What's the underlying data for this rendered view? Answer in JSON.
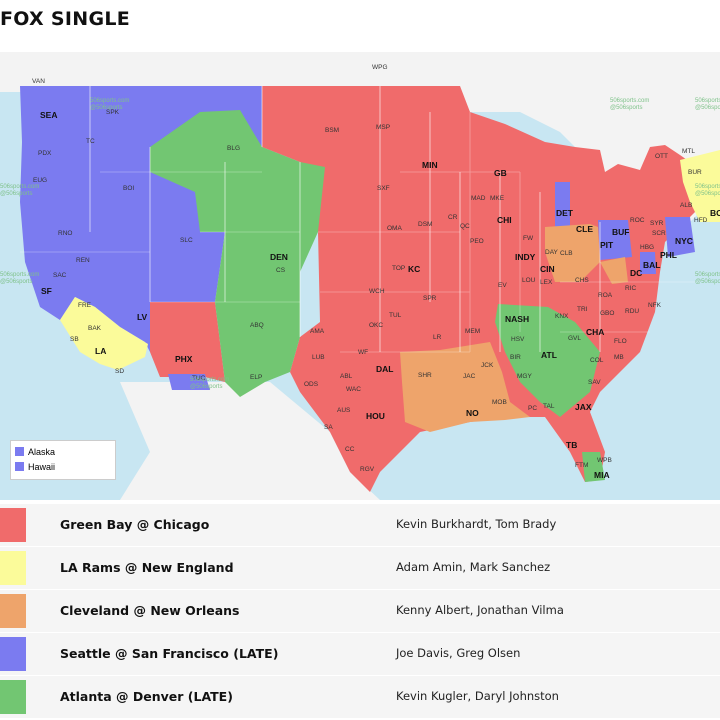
{
  "title": "FOX SINGLE",
  "colors": {
    "red": "#f06b6b",
    "yellow": "#fbfb9a",
    "orange": "#eea46b",
    "blue": "#7b7bf0",
    "green": "#72c672",
    "water": "#c8e6f2"
  },
  "inset_legend": [
    "Alaska",
    "Hawaii"
  ],
  "watermark": [
    "506sports.com",
    "@506sports"
  ],
  "map_labels": {
    "minor": [
      "VAN",
      "WPG",
      "OTT",
      "MTL"
    ],
    "markets": [
      "SEA",
      "SPK",
      "PDX",
      "TC",
      "EUG",
      "BOI",
      "RNO",
      "REN",
      "SAC",
      "SF",
      "FRE",
      "BAK",
      "SB",
      "LA",
      "SD",
      "LV",
      "PHX",
      "TUC",
      "SLC",
      "BLG",
      "BSM",
      "DEN",
      "CS",
      "ABQ",
      "AMA",
      "ELP",
      "LUB",
      "ODS",
      "ABL",
      "WF",
      "DAL",
      "WAC",
      "AUS",
      "HOU",
      "SA",
      "CC",
      "RGV",
      "OMA",
      "KC",
      "TOP",
      "WCH",
      "OKC",
      "TUL",
      "SPR",
      "MSP",
      "MIN",
      "GB",
      "MAD",
      "MKE",
      "CHI",
      "DSM",
      "CR",
      "QC",
      "PEO",
      "SXF",
      "DET",
      "CLE",
      "BUF",
      "ROC",
      "SYR",
      "BUR",
      "ALB",
      "HFD",
      "NYC",
      "PHL",
      "BAL",
      "DC",
      "PIT",
      "HBG",
      "INDY",
      "CIN",
      "DAY",
      "CLB",
      "FW",
      "EV",
      "LEX",
      "LOU",
      "CHS",
      "ROA",
      "RIC",
      "NFK",
      "GBO",
      "RDU",
      "CHA",
      "GVL",
      "COL",
      "ATL",
      "NASH",
      "MEM",
      "JAC",
      "HSV",
      "BIR",
      "MGY",
      "LR",
      "SHR",
      "JCK",
      "NO",
      "MOB",
      "PC",
      "TAL",
      "JAX",
      "TB",
      "MIA",
      "WPB",
      "FTM",
      "SAV",
      "MB",
      "FLO",
      "KNX",
      "TRI",
      "SCR",
      "BO"
    ]
  },
  "legend": [
    {
      "game": "Green Bay @ Chicago",
      "crew": "Kevin Burkhardt, Tom Brady",
      "color_key": "red"
    },
    {
      "game": "LA Rams @ New England",
      "crew": "Adam Amin, Mark Sanchez",
      "color_key": "yellow"
    },
    {
      "game": "Cleveland @ New Orleans",
      "crew": "Kenny Albert, Jonathan Vilma",
      "color_key": "orange"
    },
    {
      "game": "Seattle @ San Francisco (LATE)",
      "crew": "Joe Davis, Greg Olsen",
      "color_key": "blue"
    },
    {
      "game": "Atlanta @ Denver (LATE)",
      "crew": "Kevin Kugler, Daryl Johnston",
      "color_key": "green"
    }
  ]
}
